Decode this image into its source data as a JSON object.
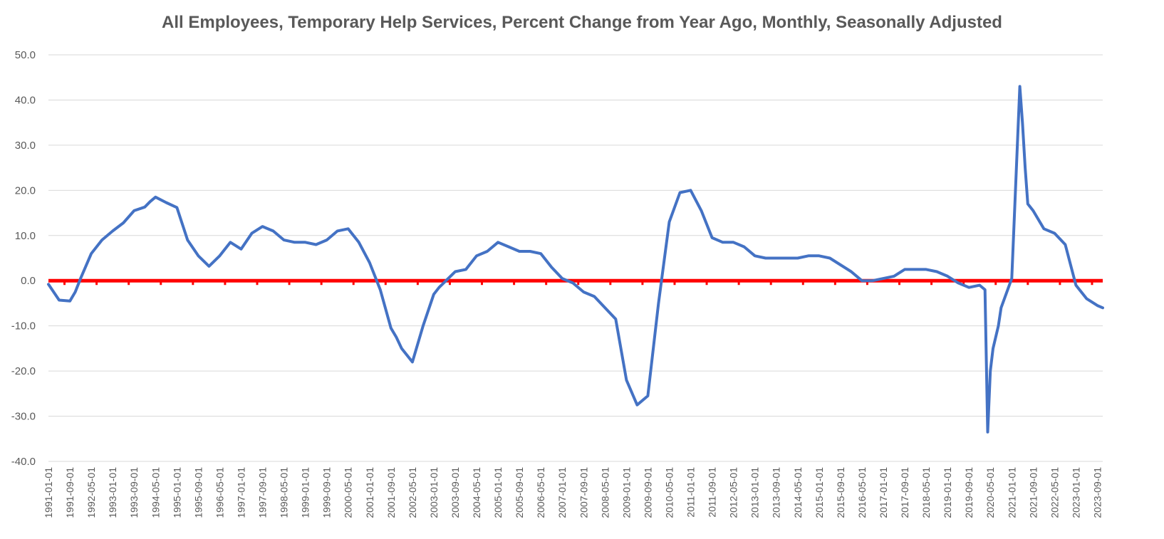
{
  "chart_data": {
    "type": "line",
    "title": "All Employees, Temporary Help Services, Percent Change from Year Ago, Monthly, Seasonally Adjusted",
    "xlabel": "",
    "ylabel": "",
    "ylim": [
      -40,
      50
    ],
    "y_ticks": [
      "-40.0",
      "-30.0",
      "-20.0",
      "-10.0",
      "0.0",
      "10.0",
      "20.0",
      "30.0",
      "40.0",
      "50.0"
    ],
    "x_tick_labels": [
      "1991-01-01",
      "1991-09-01",
      "1992-05-01",
      "1993-01-01",
      "1993-09-01",
      "1994-05-01",
      "1995-01-01",
      "1995-09-01",
      "1996-05-01",
      "1997-01-01",
      "1997-09-01",
      "1998-05-01",
      "1999-01-01",
      "1999-09-01",
      "2000-05-01",
      "2001-01-01",
      "2001-09-01",
      "2002-05-01",
      "2003-01-01",
      "2003-09-01",
      "2004-05-01",
      "2005-01-01",
      "2005-09-01",
      "2006-05-01",
      "2007-01-01",
      "2007-09-01",
      "2008-05-01",
      "2009-01-01",
      "2009-09-01",
      "2010-05-01",
      "2011-01-01",
      "2011-09-01",
      "2012-05-01",
      "2013-01-01",
      "2013-09-01",
      "2014-05-01",
      "2015-01-01",
      "2015-09-01",
      "2016-05-01",
      "2017-01-01",
      "2017-09-01",
      "2018-05-01",
      "2019-01-01",
      "2019-09-01",
      "2020-05-01",
      "2021-01-01",
      "2021-09-01",
      "2022-05-01",
      "2023-01-01",
      "2023-09-01"
    ],
    "grid": true,
    "reference_line": {
      "y": 0,
      "color": "#ff0000"
    },
    "series": [
      {
        "color": "#4472c4",
        "x": [
          "1991-01-01",
          "1991-05-01",
          "1991-09-01",
          "1991-11-01",
          "1992-01-01",
          "1992-05-01",
          "1992-09-01",
          "1993-01-01",
          "1993-05-01",
          "1993-09-01",
          "1994-01-01",
          "1994-03-01",
          "1994-05-01",
          "1994-09-01",
          "1995-01-01",
          "1995-05-01",
          "1995-09-01",
          "1996-01-01",
          "1996-05-01",
          "1996-09-01",
          "1997-01-01",
          "1997-05-01",
          "1997-09-01",
          "1998-01-01",
          "1998-05-01",
          "1998-09-01",
          "1999-01-01",
          "1999-05-01",
          "1999-09-01",
          "2000-01-01",
          "2000-05-01",
          "2000-09-01",
          "2001-01-01",
          "2001-05-01",
          "2001-09-01",
          "2001-11-01",
          "2002-01-01",
          "2002-05-01",
          "2002-09-01",
          "2003-01-01",
          "2003-03-01",
          "2003-09-01",
          "2004-01-01",
          "2004-05-01",
          "2004-09-01",
          "2005-01-01",
          "2005-05-01",
          "2005-09-01",
          "2006-01-01",
          "2006-05-01",
          "2006-09-01",
          "2007-01-01",
          "2007-05-01",
          "2007-09-01",
          "2008-01-01",
          "2008-05-01",
          "2008-09-01",
          "2009-01-01",
          "2009-05-01",
          "2009-09-01",
          "2010-01-01",
          "2010-05-01",
          "2010-09-01",
          "2011-01-01",
          "2011-05-01",
          "2011-09-01",
          "2012-01-01",
          "2012-05-01",
          "2012-09-01",
          "2013-01-01",
          "2013-05-01",
          "2013-09-01",
          "2014-01-01",
          "2014-05-01",
          "2014-09-01",
          "2015-01-01",
          "2015-05-01",
          "2015-09-01",
          "2016-01-01",
          "2016-05-01",
          "2016-09-01",
          "2017-01-01",
          "2017-05-01",
          "2017-09-01",
          "2018-01-01",
          "2018-05-01",
          "2018-09-01",
          "2019-01-01",
          "2019-05-01",
          "2019-09-01",
          "2020-01-01",
          "2020-03-01",
          "2020-04-01",
          "2020-05-01",
          "2020-06-01",
          "2020-08-01",
          "2020-09-01",
          "2021-01-01",
          "2021-04-01",
          "2021-05-01",
          "2021-06-01",
          "2021-07-01",
          "2021-09-01",
          "2022-01-01",
          "2022-05-01",
          "2022-09-01",
          "2023-01-01",
          "2023-05-01",
          "2023-09-01",
          "2023-11-01"
        ],
        "values": [
          -0.8,
          -4.3,
          -4.5,
          -2.5,
          0.5,
          6.0,
          9.0,
          11.0,
          12.8,
          15.5,
          16.3,
          17.5,
          18.5,
          17.3,
          16.2,
          9.0,
          5.5,
          3.2,
          5.5,
          8.5,
          7.0,
          10.5,
          12.0,
          11.0,
          9.0,
          8.5,
          8.5,
          8.0,
          9.0,
          11.0,
          11.5,
          8.5,
          4.0,
          -2.0,
          -10.5,
          -12.5,
          -15.0,
          -18.0,
          -10.0,
          -3.0,
          -1.5,
          2.0,
          2.5,
          5.5,
          6.5,
          8.5,
          7.5,
          6.5,
          6.5,
          6.0,
          3.0,
          0.5,
          -0.5,
          -2.5,
          -3.5,
          -6.0,
          -8.5,
          -22.0,
          -27.5,
          -25.5,
          -5.0,
          13.0,
          19.5,
          20.0,
          15.5,
          9.5,
          8.5,
          8.5,
          7.5,
          5.5,
          5.0,
          5.0,
          5.0,
          5.0,
          5.5,
          5.5,
          5.0,
          3.5,
          2.0,
          0.0,
          0.0,
          0.5,
          1.0,
          2.5,
          2.5,
          2.5,
          2.0,
          1.0,
          -0.5,
          -1.5,
          -1.0,
          -2.0,
          -33.5,
          -20.0,
          -15.0,
          -10.0,
          -6.0,
          0.5,
          43.0,
          35.0,
          25.0,
          17.0,
          15.5,
          11.5,
          10.5,
          8.0,
          -1.0,
          -4.0,
          -5.5,
          -6.0
        ]
      }
    ]
  }
}
